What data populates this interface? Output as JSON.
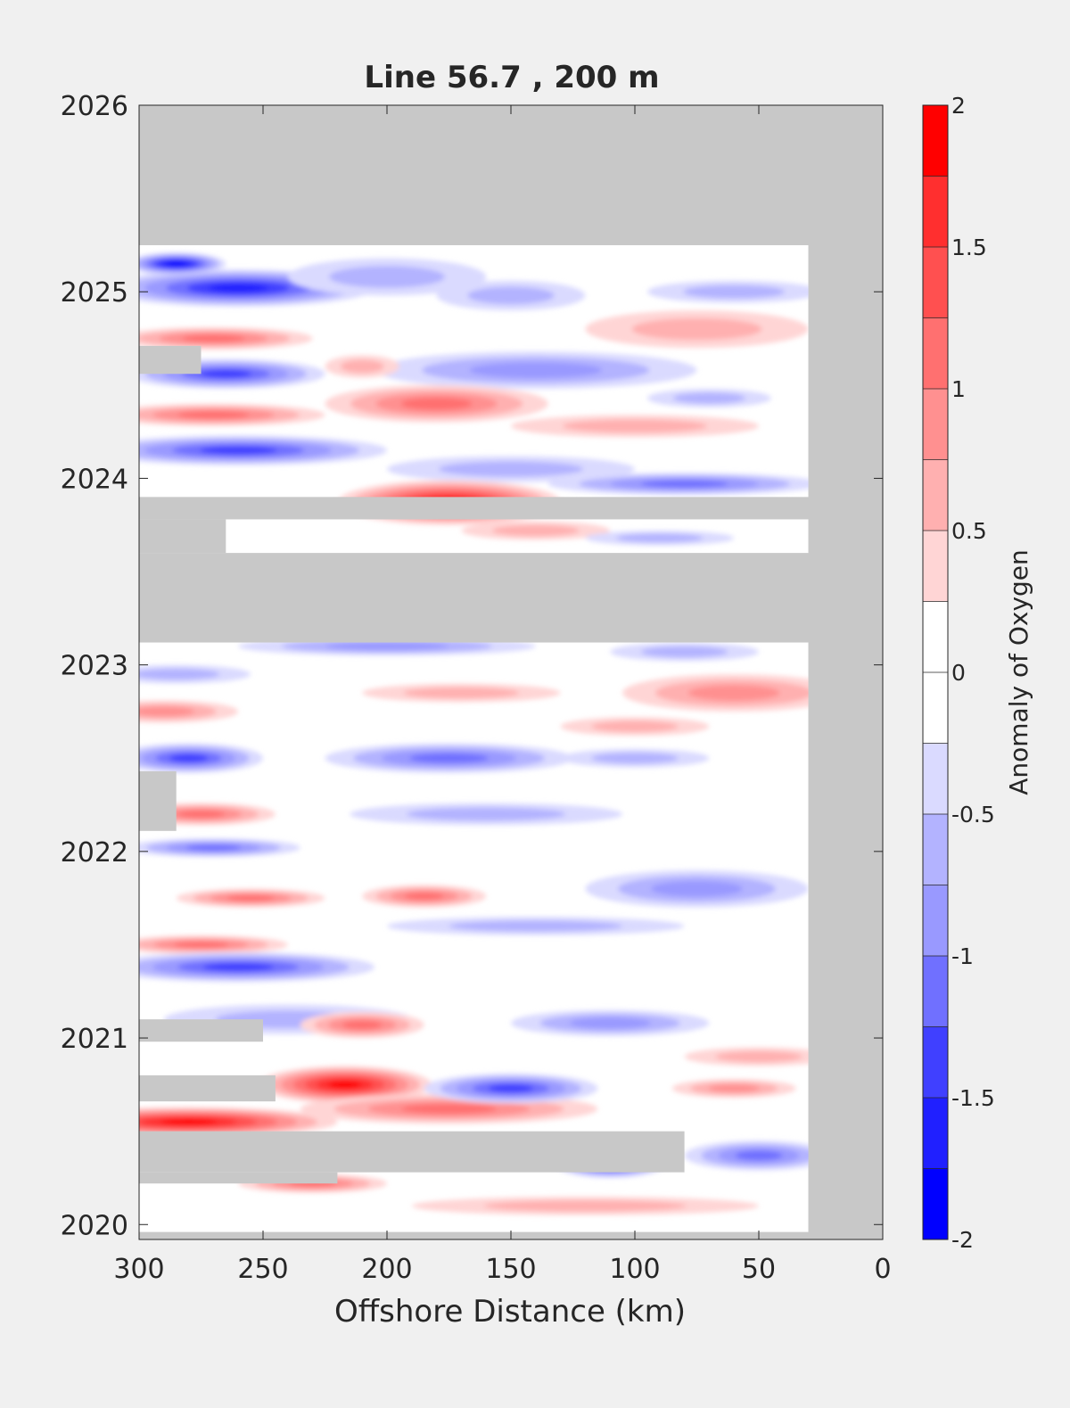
{
  "chart_data": {
    "type": "heatmap",
    "title": "Line 56.7 , 200 m",
    "xlabel": "Offshore Distance (km)",
    "ylabel": "",
    "xlim": [
      300,
      0
    ],
    "ylim": [
      2019.92,
      2026
    ],
    "x_ticks": [
      "300",
      "250",
      "200",
      "150",
      "100",
      "50",
      "0"
    ],
    "x_tick_values": [
      300,
      250,
      200,
      150,
      100,
      50,
      0
    ],
    "y_ticks": [
      "2020",
      "2021",
      "2022",
      "2023",
      "2024",
      "2025",
      "2026"
    ],
    "y_tick_values": [
      2020,
      2021,
      2022,
      2023,
      2024,
      2025,
      2026
    ],
    "colorbar": {
      "label": "Anomaly of Oxygen",
      "range": [
        -2,
        2
      ],
      "levels": [
        -2,
        -1.75,
        -1.5,
        -1.25,
        -1,
        -0.75,
        -0.5,
        -0.25,
        0,
        0.25,
        0.5,
        0.75,
        1,
        1.25,
        1.5,
        1.75,
        2
      ],
      "tick_labels": [
        "-2",
        "-1.5",
        "-1",
        "-0.5",
        "0",
        "0.5",
        "1",
        "1.5",
        "2"
      ],
      "tick_values": [
        -2,
        -1.5,
        -1,
        -0.5,
        0,
        0.5,
        1,
        1.5,
        2
      ],
      "colors": [
        "#0000ff",
        "#2020ff",
        "#4040ff",
        "#7070ff",
        "#9999ff",
        "#b3b3ff",
        "#dadaff",
        "#ffffff",
        "#ffffff",
        "#ffd5d5",
        "#ffb0b0",
        "#ff9090",
        "#ff7070",
        "#ff5050",
        "#ff2f2f",
        "#ff0000"
      ]
    },
    "no_data_color": "#c8c8c8",
    "data_extent": {
      "x_min": 30,
      "x_max": 300,
      "y_min": 2019.96,
      "y_max": 2025.25
    },
    "no_data_regions": [
      {
        "x": [
          0,
          300
        ],
        "y": [
          2025.25,
          2026
        ]
      },
      {
        "x": [
          0,
          30
        ],
        "y": [
          2019.92,
          2025.25
        ]
      },
      {
        "x": [
          30,
          300
        ],
        "y": [
          2023.12,
          2023.6
        ]
      },
      {
        "x": [
          30,
          300
        ],
        "y": [
          2023.78,
          2023.9
        ]
      },
      {
        "x": [
          265,
          300
        ],
        "y": [
          2023.6,
          2023.78
        ]
      },
      {
        "x": [
          275,
          300
        ],
        "y": [
          2024.56,
          2024.71
        ]
      },
      {
        "x": [
          285,
          300
        ],
        "y": [
          2022.11,
          2022.43
        ]
      },
      {
        "x": [
          250,
          300
        ],
        "y": [
          2020.98,
          2021.1
        ]
      },
      {
        "x": [
          245,
          300
        ],
        "y": [
          2020.66,
          2020.8
        ]
      },
      {
        "x": [
          80,
          300
        ],
        "y": [
          2020.28,
          2020.5
        ]
      },
      {
        "x": [
          220,
          300
        ],
        "y": [
          2020.22,
          2020.28
        ]
      }
    ],
    "anomalies": [
      {
        "x": 260,
        "y": 2025.02,
        "rx": 55,
        "ry": 0.1,
        "value": -1.5
      },
      {
        "x": 285,
        "y": 2025.15,
        "rx": 20,
        "ry": 0.06,
        "value": -1.75
      },
      {
        "x": 200,
        "y": 2025.08,
        "rx": 40,
        "ry": 0.1,
        "value": -0.5
      },
      {
        "x": 150,
        "y": 2024.98,
        "rx": 30,
        "ry": 0.08,
        "value": -0.5
      },
      {
        "x": 60,
        "y": 2025.0,
        "rx": 35,
        "ry": 0.06,
        "value": -0.5
      },
      {
        "x": 75,
        "y": 2024.8,
        "rx": 45,
        "ry": 0.1,
        "value": 0.5
      },
      {
        "x": 270,
        "y": 2024.75,
        "rx": 40,
        "ry": 0.06,
        "value": 1.0
      },
      {
        "x": 265,
        "y": 2024.56,
        "rx": 40,
        "ry": 0.08,
        "value": -1.25
      },
      {
        "x": 140,
        "y": 2024.58,
        "rx": 65,
        "ry": 0.1,
        "value": -0.75
      },
      {
        "x": 210,
        "y": 2024.6,
        "rx": 15,
        "ry": 0.06,
        "value": 0.5
      },
      {
        "x": 270,
        "y": 2024.34,
        "rx": 45,
        "ry": 0.06,
        "value": 1.0
      },
      {
        "x": 180,
        "y": 2024.4,
        "rx": 45,
        "ry": 0.1,
        "value": 1.0
      },
      {
        "x": 100,
        "y": 2024.28,
        "rx": 50,
        "ry": 0.06,
        "value": 0.5
      },
      {
        "x": 70,
        "y": 2024.43,
        "rx": 25,
        "ry": 0.05,
        "value": -0.5
      },
      {
        "x": 260,
        "y": 2024.15,
        "rx": 60,
        "ry": 0.08,
        "value": -1.25
      },
      {
        "x": 150,
        "y": 2024.05,
        "rx": 50,
        "ry": 0.07,
        "value": -0.5
      },
      {
        "x": 80,
        "y": 2023.97,
        "rx": 55,
        "ry": 0.06,
        "value": -1.0
      },
      {
        "x": 175,
        "y": 2023.87,
        "rx": 45,
        "ry": 0.12,
        "value": 1.75
      },
      {
        "x": 140,
        "y": 2023.72,
        "rx": 30,
        "ry": 0.05,
        "value": 0.5
      },
      {
        "x": 90,
        "y": 2023.68,
        "rx": 30,
        "ry": 0.04,
        "value": -0.5
      },
      {
        "x": 200,
        "y": 2023.1,
        "rx": 60,
        "ry": 0.05,
        "value": -0.75
      },
      {
        "x": 80,
        "y": 2023.07,
        "rx": 30,
        "ry": 0.05,
        "value": -0.5
      },
      {
        "x": 60,
        "y": 2022.85,
        "rx": 45,
        "ry": 0.1,
        "value": 0.75
      },
      {
        "x": 290,
        "y": 2022.75,
        "rx": 30,
        "ry": 0.06,
        "value": 0.75
      },
      {
        "x": 170,
        "y": 2022.85,
        "rx": 40,
        "ry": 0.05,
        "value": 0.5
      },
      {
        "x": 285,
        "y": 2022.95,
        "rx": 30,
        "ry": 0.05,
        "value": -0.5
      },
      {
        "x": 100,
        "y": 2022.67,
        "rx": 30,
        "ry": 0.05,
        "value": 0.5
      },
      {
        "x": 280,
        "y": 2022.5,
        "rx": 30,
        "ry": 0.08,
        "value": -1.25
      },
      {
        "x": 175,
        "y": 2022.5,
        "rx": 50,
        "ry": 0.08,
        "value": -1.0
      },
      {
        "x": 100,
        "y": 2022.5,
        "rx": 30,
        "ry": 0.05,
        "value": -0.5
      },
      {
        "x": 275,
        "y": 2022.2,
        "rx": 30,
        "ry": 0.06,
        "value": 1.0
      },
      {
        "x": 160,
        "y": 2022.2,
        "rx": 55,
        "ry": 0.06,
        "value": -0.5
      },
      {
        "x": 270,
        "y": 2022.02,
        "rx": 35,
        "ry": 0.05,
        "value": -1.0
      },
      {
        "x": 75,
        "y": 2021.8,
        "rx": 45,
        "ry": 0.1,
        "value": -0.75
      },
      {
        "x": 255,
        "y": 2021.75,
        "rx": 30,
        "ry": 0.05,
        "value": 1.0
      },
      {
        "x": 185,
        "y": 2021.76,
        "rx": 25,
        "ry": 0.06,
        "value": 1.0
      },
      {
        "x": 140,
        "y": 2021.6,
        "rx": 60,
        "ry": 0.05,
        "value": -0.5
      },
      {
        "x": 275,
        "y": 2021.5,
        "rx": 35,
        "ry": 0.05,
        "value": 1.0
      },
      {
        "x": 260,
        "y": 2021.38,
        "rx": 55,
        "ry": 0.08,
        "value": -1.25
      },
      {
        "x": 240,
        "y": 2021.1,
        "rx": 50,
        "ry": 0.08,
        "value": -0.5
      },
      {
        "x": 210,
        "y": 2021.07,
        "rx": 25,
        "ry": 0.07,
        "value": 1.0
      },
      {
        "x": 110,
        "y": 2021.08,
        "rx": 40,
        "ry": 0.07,
        "value": -0.75
      },
      {
        "x": 50,
        "y": 2020.9,
        "rx": 30,
        "ry": 0.05,
        "value": 0.5
      },
      {
        "x": 217,
        "y": 2020.75,
        "rx": 35,
        "ry": 0.1,
        "value": 1.75
      },
      {
        "x": 175,
        "y": 2020.62,
        "rx": 60,
        "ry": 0.08,
        "value": 1.0
      },
      {
        "x": 150,
        "y": 2020.73,
        "rx": 35,
        "ry": 0.08,
        "value": -1.25
      },
      {
        "x": 60,
        "y": 2020.73,
        "rx": 25,
        "ry": 0.05,
        "value": 0.75
      },
      {
        "x": 280,
        "y": 2020.55,
        "rx": 60,
        "ry": 0.08,
        "value": 1.75
      },
      {
        "x": 110,
        "y": 2020.35,
        "rx": 25,
        "ry": 0.1,
        "value": -2.0
      },
      {
        "x": 50,
        "y": 2020.37,
        "rx": 30,
        "ry": 0.08,
        "value": -1.0
      },
      {
        "x": 120,
        "y": 2020.1,
        "rx": 70,
        "ry": 0.05,
        "value": 0.5
      },
      {
        "x": 230,
        "y": 2020.22,
        "rx": 30,
        "ry": 0.05,
        "value": 1.0
      }
    ]
  }
}
